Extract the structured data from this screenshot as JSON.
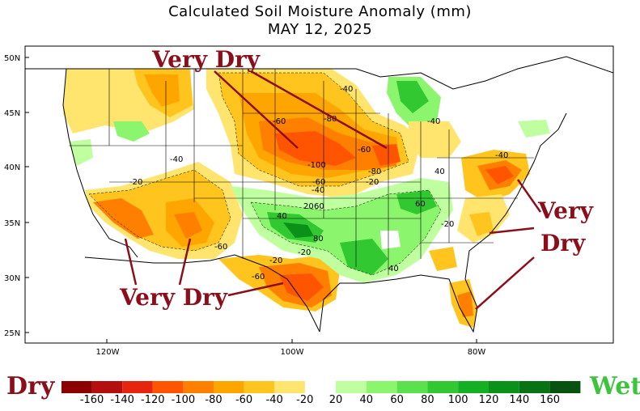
{
  "title": "Calculated Soil Moisture Anomaly (mm)",
  "date": "MAY 12, 2025",
  "axes": {
    "lat_ticks": [
      "50N",
      "45N",
      "40N",
      "35N",
      "30N",
      "25N"
    ],
    "lon_ticks": [
      "120W",
      "100W",
      "80W"
    ]
  },
  "annotations": [
    {
      "text": "Very Dry",
      "region": "northern plains"
    },
    {
      "text": "Very Dry",
      "region": "southwest and texas"
    },
    {
      "text": "Very",
      "region": "mid-atlantic"
    },
    {
      "text": "Dry",
      "region": "mid-atlantic"
    }
  ],
  "contour_labels": [
    "-40",
    "-60",
    "-80",
    "-60",
    "-80",
    "-100",
    "-60",
    "-40",
    "-20",
    "-40",
    "-20",
    "-60",
    "-20",
    "-60",
    "-20",
    "-40",
    "40",
    "20",
    "60",
    "80",
    "60",
    "40",
    "-20",
    "-40",
    "40"
  ],
  "legend": {
    "dry_label": "Dry",
    "wet_label": "Wet",
    "ticks": [
      "-160",
      "-140",
      "-120",
      "-100",
      "-80",
      "-60",
      "-40",
      "-20",
      "20",
      "40",
      "60",
      "80",
      "100",
      "120",
      "140",
      "160"
    ],
    "dry_colors": [
      "#8b0000",
      "#b40f0f",
      "#e6250f",
      "#ff5500",
      "#ff7f00",
      "#ffa500",
      "#ffc41e",
      "#ffe46e"
    ],
    "wet_colors": [
      "#c0ffa0",
      "#8cf56e",
      "#5ae14b",
      "#32c832",
      "#14af23",
      "#0a9119",
      "#087314",
      "#06520e"
    ]
  }
}
